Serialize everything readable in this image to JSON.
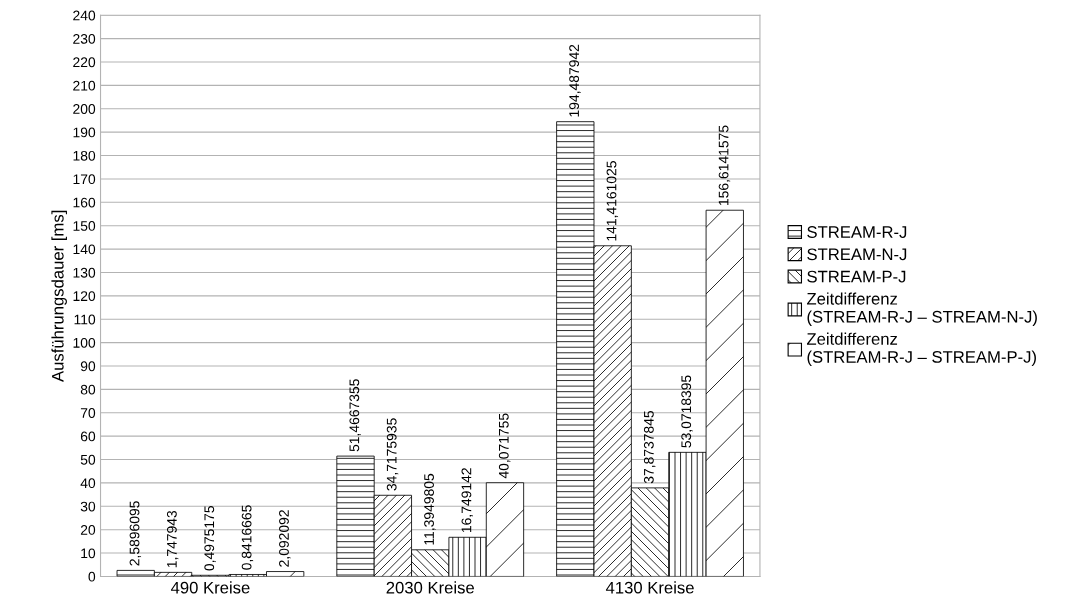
{
  "chart_data": {
    "type": "bar",
    "ylabel": "Ausführungsdauer [ms]",
    "categories": [
      "490 Kreise",
      "2030 Kreise",
      "4130 Kreise"
    ],
    "series": [
      {
        "name": "STREAM-R-J",
        "color": "#000000",
        "values": [
          2.5896095,
          51.4667355,
          194.487942
        ],
        "value_labels": [
          "2,5896095",
          "51,4667355",
          "194,487942"
        ]
      },
      {
        "name": "STREAM-N-J",
        "color": "#000000",
        "values": [
          1.747943,
          34.7175935,
          141.4161025
        ],
        "value_labels": [
          "1,747943",
          "34,7175935",
          "141,4161025"
        ]
      },
      {
        "name": "STREAM-P-J",
        "color": "#000000",
        "values": [
          0.4975175,
          11.3949805,
          37.8737845
        ],
        "value_labels": [
          "0,4975175",
          "11,3949805",
          "37,8737845"
        ]
      },
      {
        "name": "Zeitdifferenz\n(STREAM-R-J – STREAM-N-J)",
        "color": "#000000",
        "values": [
          0.8416665,
          16.749142,
          53.0718395
        ],
        "value_labels": [
          "0,8416665",
          "16,749142",
          "53,0718395"
        ]
      },
      {
        "name": "Zeitdifferenz\n(STREAM-R-J – STREAM-P-J)",
        "color": "#000000",
        "values": [
          2.092092,
          40.071755,
          156.6141575
        ],
        "value_labels": [
          "2,092092",
          "40,071755",
          "156,6141575"
        ]
      }
    ],
    "ylim": [
      0,
      240
    ],
    "yticks": [
      0,
      10,
      20,
      30,
      40,
      50,
      60,
      70,
      80,
      90,
      100,
      110,
      120,
      130,
      140,
      150,
      160,
      170,
      180,
      190,
      200,
      210,
      220,
      230,
      240
    ],
    "grid": "y",
    "legend": "right"
  }
}
